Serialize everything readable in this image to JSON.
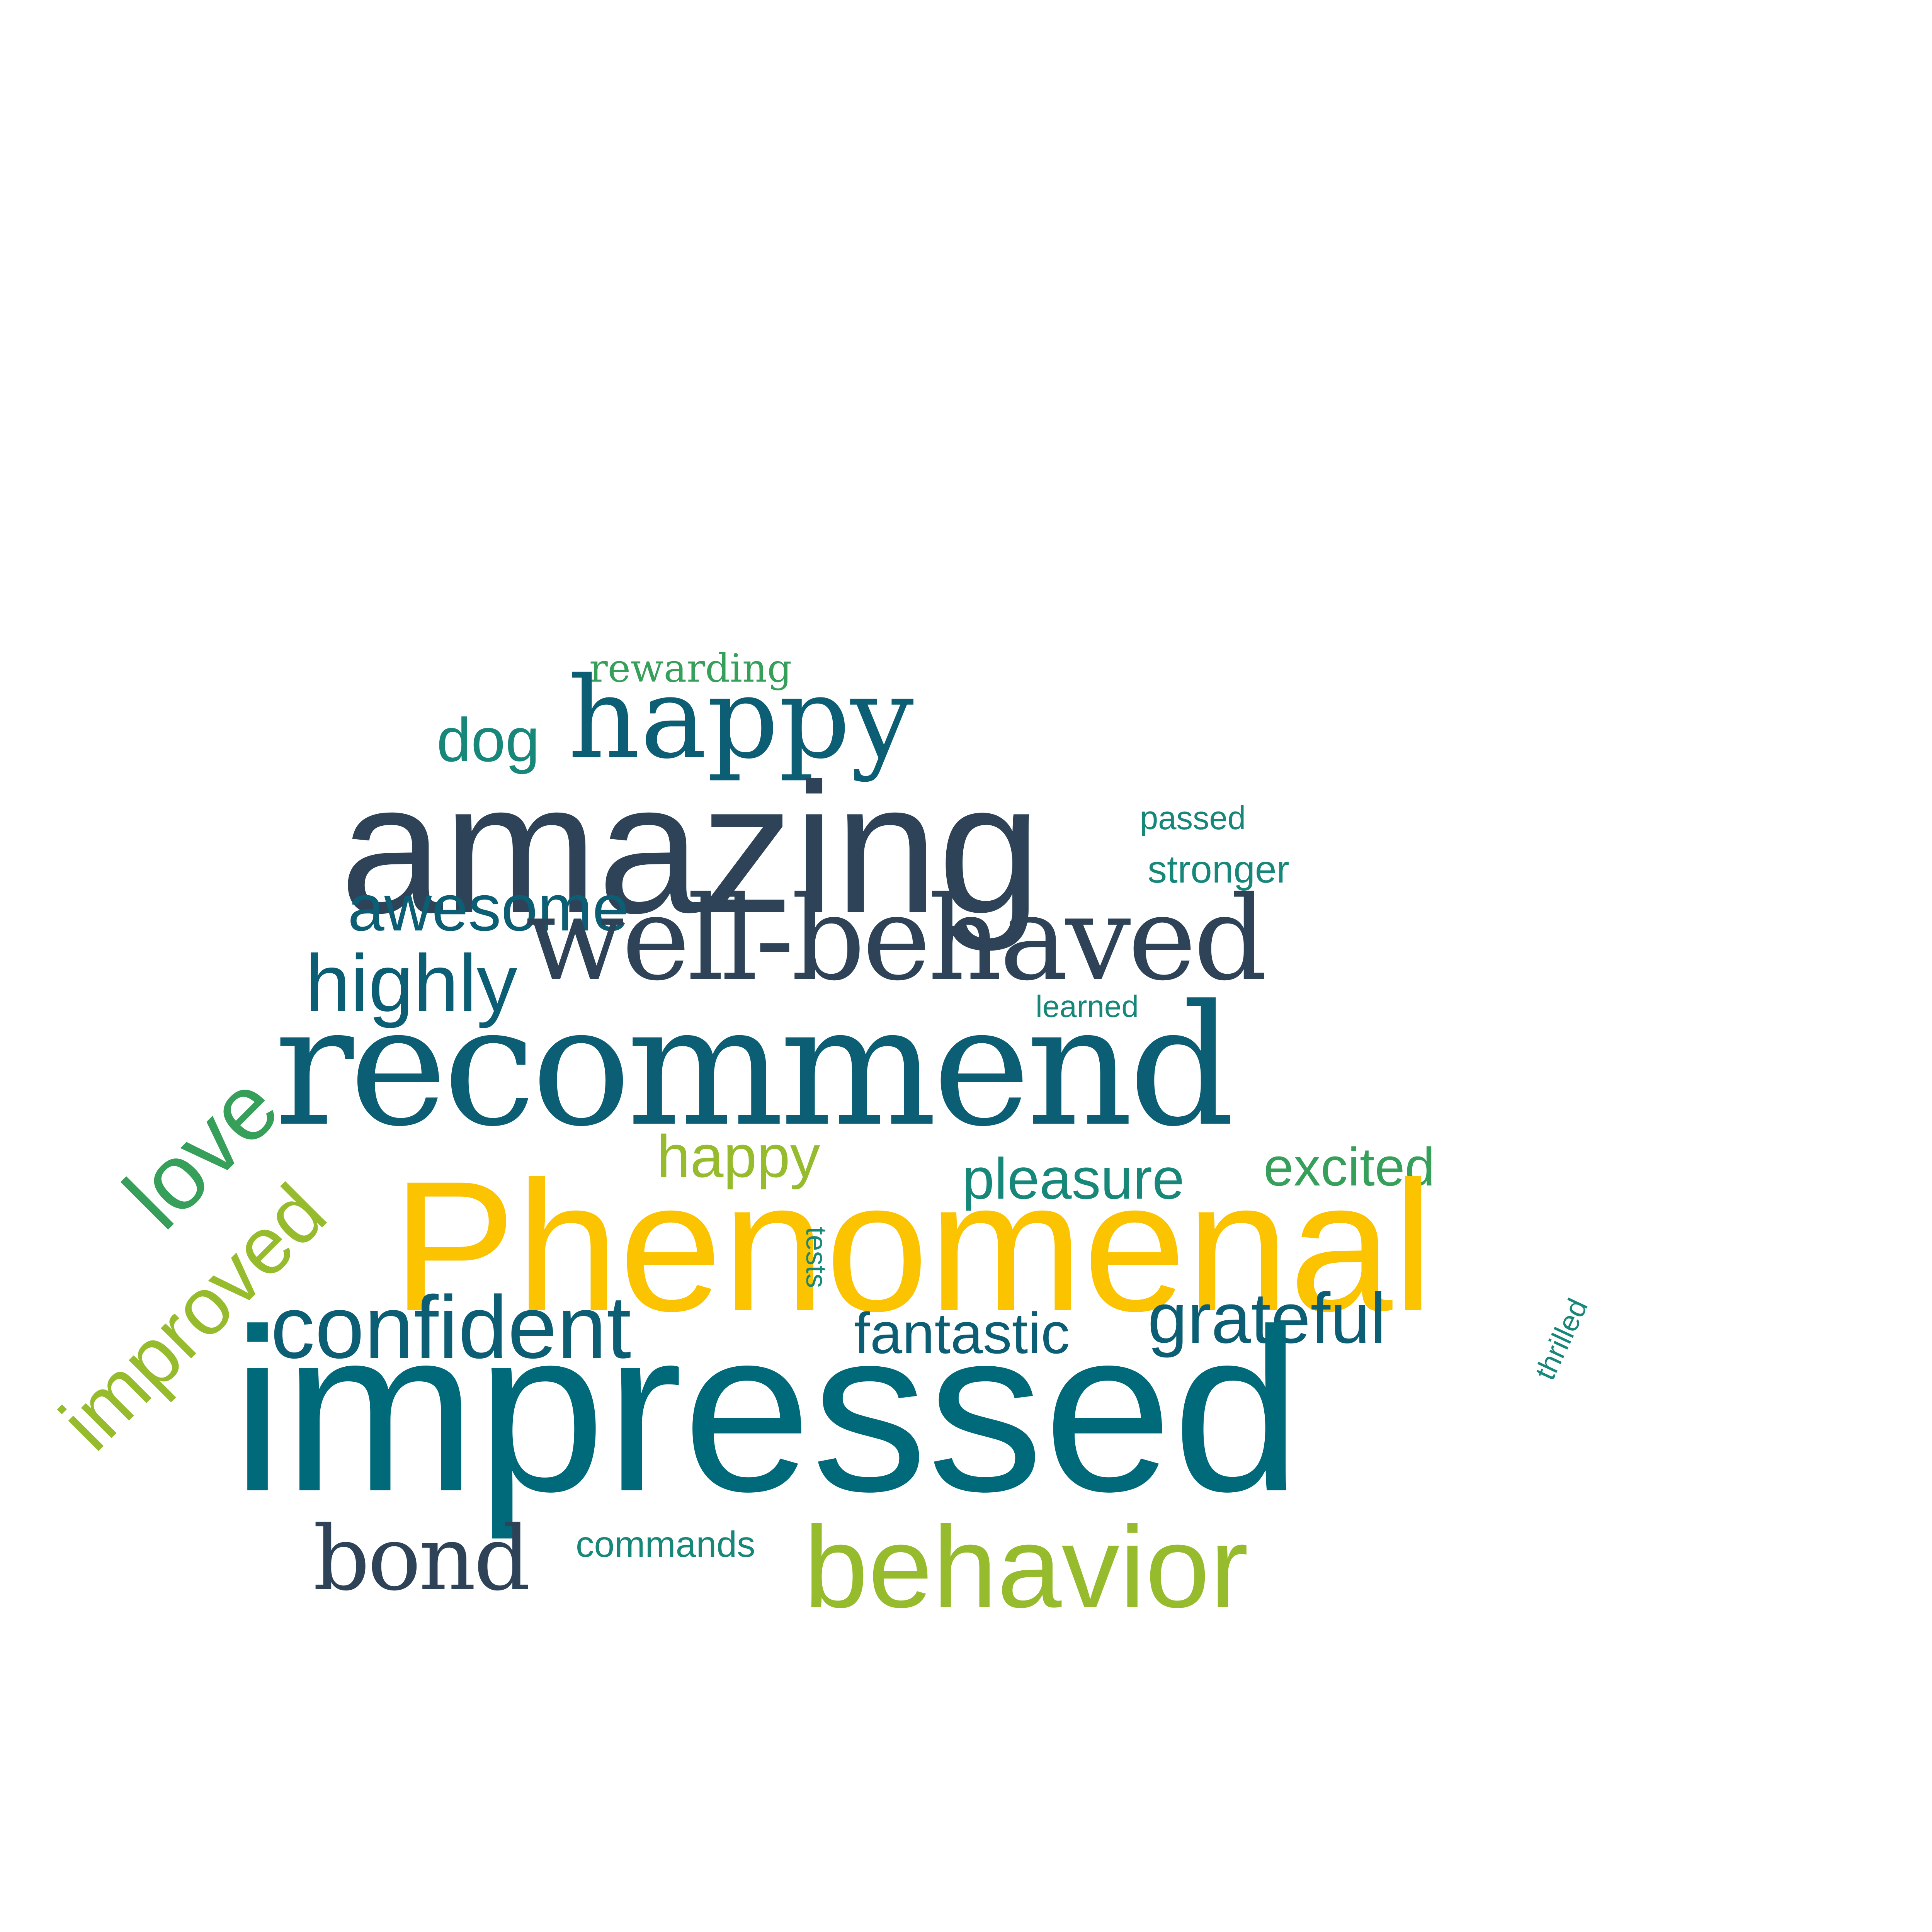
{
  "palette": {
    "navy": "#2E4357",
    "teal": "#006A7A",
    "deep_teal": "#0B5E73",
    "green_teal": "#17877A",
    "green": "#36A05A",
    "lime": "#96BC2E",
    "yellow": "#FBC300"
  },
  "words": [
    {
      "text": "rewarding",
      "color": "#36A05A",
      "font": "serif"
    },
    {
      "text": "happy",
      "color": "#0B5E73",
      "font": "serif"
    },
    {
      "text": "dog",
      "color": "#17877A",
      "font": "sans"
    },
    {
      "text": "amazing",
      "color": "#2E4357",
      "font": "sans"
    },
    {
      "text": "passed",
      "color": "#17877A",
      "font": "sans"
    },
    {
      "text": "stronger",
      "color": "#17877A",
      "font": "sans"
    },
    {
      "text": "awesome",
      "color": "#0B5E73",
      "font": "sans"
    },
    {
      "text": "well-behaved",
      "color": "#2E4357",
      "font": "serif"
    },
    {
      "text": "highly",
      "color": "#0B5E73",
      "font": "sans"
    },
    {
      "text": "learned",
      "color": "#17877A",
      "font": "sans"
    },
    {
      "text": "recommend",
      "color": "#0B5E73",
      "font": "serif"
    },
    {
      "text": "love",
      "color": "#36A05A",
      "font": "sans"
    },
    {
      "text": "happy",
      "color": "#96BC2E",
      "font": "sans"
    },
    {
      "text": "pleasure",
      "color": "#17877A",
      "font": "sans"
    },
    {
      "text": "excited",
      "color": "#36A05A",
      "font": "sans"
    },
    {
      "text": "improved",
      "color": "#96BC2E",
      "font": "sans"
    },
    {
      "text": "Phenomenal",
      "color": "#FBC300",
      "font": "sans"
    },
    {
      "text": "tests",
      "color": "#17877A",
      "font": "sans"
    },
    {
      "text": "thrilled",
      "color": "#17877A",
      "font": "sans"
    },
    {
      "text": "confident",
      "color": "#0B5E73",
      "font": "sans"
    },
    {
      "text": "fantastic",
      "color": "#0B5E73",
      "font": "sans"
    },
    {
      "text": "grateful",
      "color": "#0B5E73",
      "font": "sans"
    },
    {
      "text": "impressed",
      "color": "#006A7A",
      "font": "sans"
    },
    {
      "text": "bond",
      "color": "#2E4357",
      "font": "serif"
    },
    {
      "text": "commands",
      "color": "#17877A",
      "font": "sans"
    },
    {
      "text": "behavior",
      "color": "#96BC2E",
      "font": "sans"
    }
  ]
}
